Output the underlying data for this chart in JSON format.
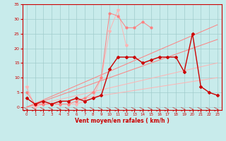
{
  "x": [
    0,
    1,
    2,
    3,
    4,
    5,
    6,
    7,
    8,
    9,
    10,
    11,
    12,
    13,
    14,
    15,
    16,
    17,
    18,
    19,
    20,
    21,
    22,
    23
  ],
  "line_lightest": [
    7,
    0,
    1,
    1,
    1,
    1,
    1,
    2,
    3,
    10,
    26,
    33,
    21,
    null,
    null,
    null,
    null,
    null,
    null,
    null,
    null,
    null,
    null,
    null
  ],
  "line_light": [
    5,
    1,
    1,
    1,
    1,
    1,
    2,
    3,
    5,
    10,
    32,
    31,
    27,
    27,
    29,
    27,
    null,
    null,
    null,
    null,
    null,
    null,
    null,
    null
  ],
  "line_medium": [
    3,
    1,
    2,
    1,
    2,
    2,
    3,
    2,
    3,
    4,
    13,
    17,
    17,
    17,
    15,
    16,
    17,
    17,
    17,
    12,
    25,
    7,
    5,
    4
  ],
  "straight1": [
    0,
    0.43,
    0.87,
    1.3,
    1.74,
    2.17,
    2.61,
    3.04,
    3.48,
    3.91,
    4.35,
    4.78,
    5.22,
    5.65,
    6.09,
    6.52,
    6.96,
    7.39,
    7.83,
    8.26,
    8.7,
    9.13,
    9.57,
    10.0
  ],
  "straight2": [
    0,
    0.65,
    1.3,
    1.96,
    2.61,
    3.26,
    3.91,
    4.57,
    5.22,
    5.87,
    6.52,
    7.17,
    7.83,
    8.48,
    9.13,
    9.78,
    10.43,
    11.09,
    11.74,
    12.39,
    13.04,
    13.7,
    14.35,
    15.0
  ],
  "straight3": [
    0,
    1.0,
    2.0,
    3.0,
    4.0,
    5.0,
    6.0,
    7.0,
    8.0,
    9.0,
    10.0,
    11.0,
    12.0,
    13.0,
    14.0,
    15.0,
    16.0,
    17.0,
    18.0,
    19.0,
    20.0,
    21.0,
    22.0,
    23.0
  ],
  "straight4": [
    0,
    1.22,
    2.43,
    3.65,
    4.87,
    6.09,
    7.3,
    8.52,
    9.74,
    10.96,
    12.17,
    13.39,
    14.61,
    15.83,
    17.04,
    18.26,
    19.48,
    20.7,
    21.91,
    23.13,
    24.35,
    25.57,
    26.78,
    28.0
  ],
  "color_lightest": "#FFB3B3",
  "color_light": "#FF8080",
  "color_medium": "#FF4444",
  "color_dark": "#CC0000",
  "bg_color": "#C8EBEB",
  "grid_color": "#A0CCCC",
  "text_color": "#CC0000",
  "xlabel": "Vent moyen/en rafales ( km/h )",
  "xlim": [
    -0.5,
    23.5
  ],
  "ylim": [
    -1,
    35
  ],
  "yticks": [
    0,
    5,
    10,
    15,
    20,
    25,
    30,
    35
  ],
  "xticks": [
    0,
    1,
    2,
    3,
    4,
    5,
    6,
    7,
    8,
    9,
    10,
    11,
    12,
    13,
    14,
    15,
    16,
    17,
    18,
    19,
    20,
    21,
    22,
    23
  ]
}
